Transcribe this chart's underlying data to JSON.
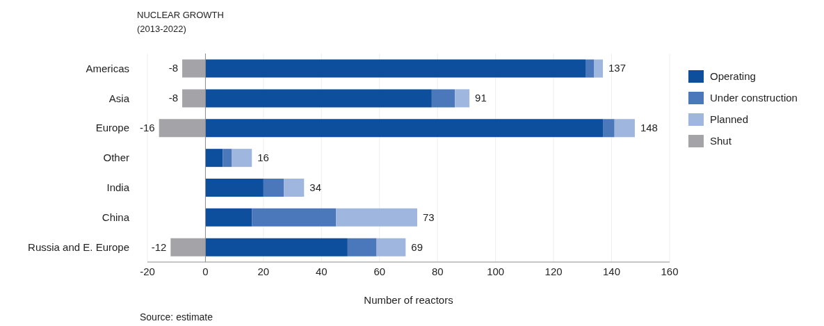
{
  "chart_data": {
    "type": "bar",
    "orientation": "horizontal",
    "stacked": true,
    "title": "NUCLEAR GROWTH",
    "subtitle": "(2013-2022)",
    "xlabel": "Number of reactors",
    "annotations": [
      "Source: estimate",
      {
        "text": "137",
        "x": 137,
        "y": "Americas"
      },
      {
        "text": "91",
        "x": 91,
        "y": "Asia"
      },
      {
        "text": "148",
        "x": 148,
        "y": "Europe"
      },
      {
        "text": "16",
        "x": 16,
        "y": "Other"
      },
      {
        "text": "34",
        "x": 34,
        "y": "India"
      },
      {
        "text": "73",
        "x": 73,
        "y": "China"
      },
      {
        "text": "69",
        "x": 69,
        "y": "Russia and E. Europe"
      }
    ],
    "categories": [
      "Americas",
      "Asia",
      "Europe",
      "Other",
      "India",
      "China",
      "Russia and E. Europe"
    ],
    "series": [
      {
        "name": "Operating",
        "color": "#0d4f9c",
        "values": [
          131,
          78,
          137,
          6,
          20,
          16,
          49
        ]
      },
      {
        "name": "Under construction",
        "color": "#4a78bb",
        "values": [
          3,
          8,
          4,
          3,
          7,
          29,
          10
        ]
      },
      {
        "name": "Planned",
        "color": "#9fb6de",
        "values": [
          3,
          5,
          7,
          7,
          7,
          28,
          10
        ]
      },
      {
        "name": "Shut",
        "color": "#a4a4a8",
        "values": [
          -8,
          -8,
          -16,
          null,
          null,
          null,
          -12
        ],
        "value_labels": [
          "-8",
          "-8",
          "-16",
          null,
          null,
          null,
          "-12"
        ]
      }
    ],
    "xlim": [
      -20,
      160
    ],
    "xticks": [
      -20,
      0,
      20,
      40,
      60,
      80,
      100,
      120,
      140,
      160
    ],
    "ref_lines": [
      {
        "axis": "x",
        "value": 0,
        "color": "#8c8c8c"
      }
    ],
    "grid": "x",
    "legend": "right"
  }
}
